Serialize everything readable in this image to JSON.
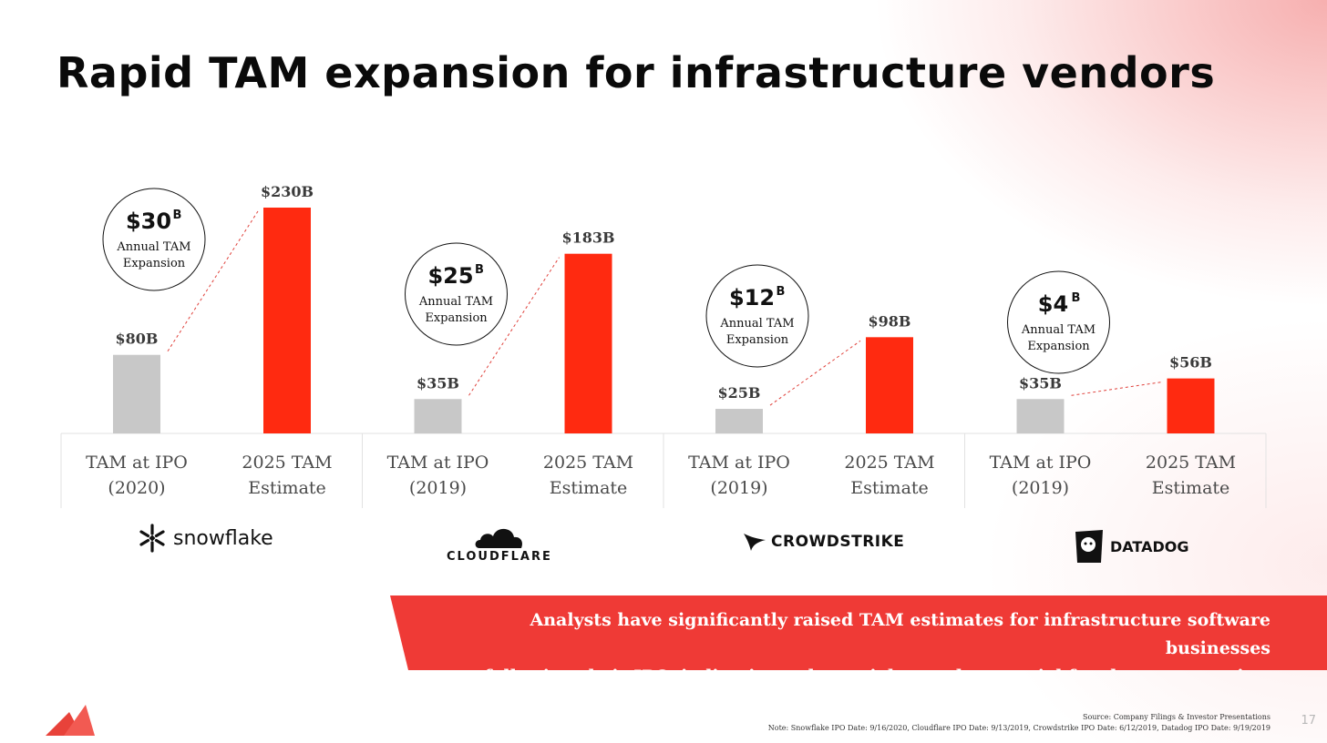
{
  "title": "Rapid TAM expansion for infrastructure vendors",
  "colors": {
    "ipo_bar": "#c8c8c8",
    "estimate_bar": "#ff2a10",
    "accent": "#ef3a36"
  },
  "chart_data": {
    "type": "bar",
    "title": "Rapid TAM expansion for infrastructure vendors",
    "ylabel": "",
    "ylim": [
      0,
      240
    ],
    "unit": "$B",
    "groups": [
      {
        "company": "snowflake",
        "ipo_label": "TAM at IPO (2020)",
        "estimate_label": "2025 TAM Estimate",
        "ipo_value": 80,
        "estimate_value": 230,
        "ipo_value_label": "$80B",
        "estimate_value_label": "$230B",
        "expansion_value": "$30",
        "expansion_unit": "B",
        "expansion_line1": "Annual TAM",
        "expansion_line2": "Expansion"
      },
      {
        "company": "CLOUDFLARE",
        "ipo_label": "TAM at IPO (2019)",
        "estimate_label": "2025 TAM Estimate",
        "ipo_value": 35,
        "estimate_value": 183,
        "ipo_value_label": "$35B",
        "estimate_value_label": "$183B",
        "expansion_value": "$25",
        "expansion_unit": "B",
        "expansion_line1": "Annual TAM",
        "expansion_line2": "Expansion"
      },
      {
        "company": "CROWDSTRIKE",
        "ipo_label": "TAM at IPO (2019)",
        "estimate_label": "2025 TAM Estimate",
        "ipo_value": 25,
        "estimate_value": 98,
        "ipo_value_label": "$25B",
        "estimate_value_label": "$98B",
        "expansion_value": "$12",
        "expansion_unit": "B",
        "expansion_line1": "Annual TAM",
        "expansion_line2": "Expansion"
      },
      {
        "company": "DATADOG",
        "ipo_label": "TAM at IPO (2019)",
        "estimate_label": "2025 TAM Estimate",
        "ipo_value": 35,
        "estimate_value": 56,
        "ipo_value_label": "$35B",
        "estimate_value_label": "$56B",
        "expansion_value": "$4",
        "expansion_unit": "B",
        "expansion_line1": "Annual TAM",
        "expansion_line2": "Expansion"
      }
    ]
  },
  "logos": {
    "snowflake": "snowflake",
    "cloudflare": "CLOUDFLARE",
    "crowdstrike": "CROWDSTRIKE",
    "datadog": "DATADOG"
  },
  "banner": {
    "line1": "Analysts have significantly raised TAM estimates for infrastructure software businesses",
    "line2": "following their IPO, indicating substantial growth potential for these companies."
  },
  "footer": {
    "source": "Source: Company Filings & Investor Presentations",
    "note": "Note: Snowflake IPO Date: 9/16/2020, Cloudflare IPO Date: 9/13/2019, Crowdstrike IPO Date: 6/12/2019, Datadog IPO Date: 9/19/2019",
    "page": "17"
  }
}
